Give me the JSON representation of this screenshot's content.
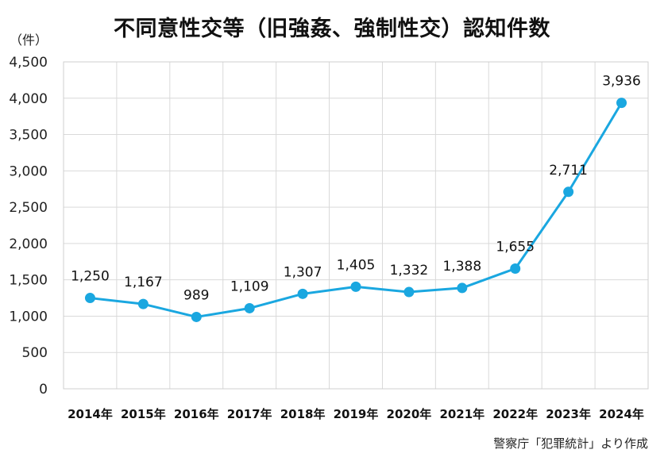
{
  "chart_data": {
    "type": "line",
    "title": "不同意性交等（旧強姦、強制性交）認知件数",
    "unit": "（件）",
    "categories": [
      "2014年",
      "2015年",
      "2016年",
      "2017年",
      "2018年",
      "2019年",
      "2020年",
      "2021年",
      "2022年",
      "2023年",
      "2024年"
    ],
    "values": [
      1250,
      1167,
      989,
      1109,
      1307,
      1405,
      1332,
      1388,
      1655,
      2711,
      3936
    ],
    "value_labels": [
      "1,250",
      "1,167",
      "989",
      "1,109",
      "1,307",
      "1,405",
      "1,332",
      "1,388",
      "1,655",
      "2,711",
      "3,936"
    ],
    "y_ticks": [
      0,
      500,
      1000,
      1500,
      2000,
      2500,
      3000,
      3500,
      4000,
      4500
    ],
    "y_tick_labels": [
      "0",
      "500",
      "1,000",
      "1,500",
      "2,000",
      "2,500",
      "3,000",
      "3,500",
      "4,000",
      "4,500"
    ],
    "ylim": [
      0,
      4500
    ],
    "grid": true,
    "line_color": "#1aa7e0",
    "grid_color": "#d9d9d9"
  },
  "source": "警察庁「犯罪統計」より作成"
}
